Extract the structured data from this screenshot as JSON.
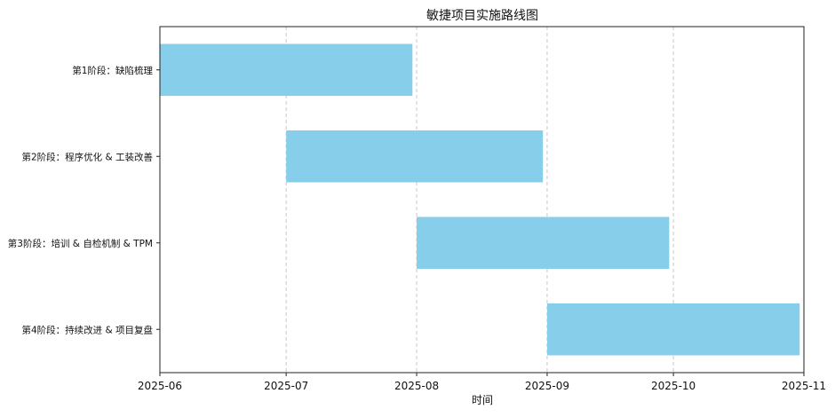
{
  "chart_data": {
    "type": "bar",
    "orientation": "horizontal-gantt",
    "title": "敏捷项目实施路线图",
    "xlabel": "时间",
    "ylabel": "",
    "x_ticks": [
      "2025-06",
      "2025-07",
      "2025-08",
      "2025-09",
      "2025-10",
      "2025-11"
    ],
    "xlim": [
      "2025-06-01",
      "2025-11-01"
    ],
    "grid": "x-dashed",
    "bar_color": "#87CEEB",
    "tasks": [
      {
        "label": "第1阶段：缺陷梳理",
        "start": "2025-06-01",
        "end": "2025-07-31"
      },
      {
        "label": "第2阶段：程序优化 & 工装改善",
        "start": "2025-07-01",
        "end": "2025-08-31"
      },
      {
        "label": "第3阶段：培训 & 自检机制 & TPM",
        "start": "2025-08-01",
        "end": "2025-09-30"
      },
      {
        "label": "第4阶段：持续改进 & 项目复盘",
        "start": "2025-09-01",
        "end": "2025-10-31"
      }
    ]
  }
}
